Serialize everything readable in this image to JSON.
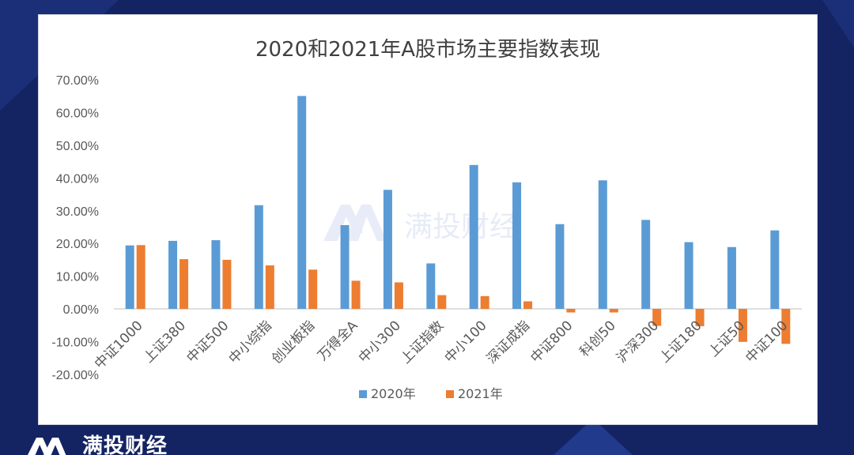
{
  "brand": {
    "name": "满投财经",
    "watermark": "满投财经",
    "accent": "#4a6cc8"
  },
  "chart_data": {
    "type": "bar",
    "title": "2020和2021年A股市场主要指数表现",
    "xlabel": "",
    "ylabel": "",
    "categories": [
      "中证1000",
      "上证380",
      "中证500",
      "中小综指",
      "创业板指",
      "万得全A",
      "中小300",
      "上证指数",
      "中小100",
      "深证成指",
      "中证800",
      "科创50",
      "沪深300",
      "上证180",
      "上证50",
      "中证100"
    ],
    "series": [
      {
        "name": "2020年",
        "color": "#5b9bd5",
        "values": [
          19.4,
          20.8,
          21.0,
          31.7,
          65.1,
          25.6,
          36.4,
          13.9,
          44.0,
          38.7,
          25.9,
          39.3,
          27.2,
          20.4,
          18.9,
          24.0
        ]
      },
      {
        "name": "2021年",
        "color": "#ed7d31",
        "values": [
          19.5,
          15.2,
          15.0,
          13.3,
          12.0,
          8.6,
          8.1,
          4.2,
          3.9,
          2.3,
          -1.1,
          -1.1,
          -5.2,
          -5.3,
          -10.1,
          -10.7
        ]
      }
    ],
    "ylim": [
      -20,
      70
    ],
    "yticks": [
      "-20.00%",
      "-10.00%",
      "0.00%",
      "10.00%",
      "20.00%",
      "30.00%",
      "40.00%",
      "50.00%",
      "60.00%",
      "70.00%"
    ],
    "gridlines": false,
    "legend": "bottom-center"
  }
}
